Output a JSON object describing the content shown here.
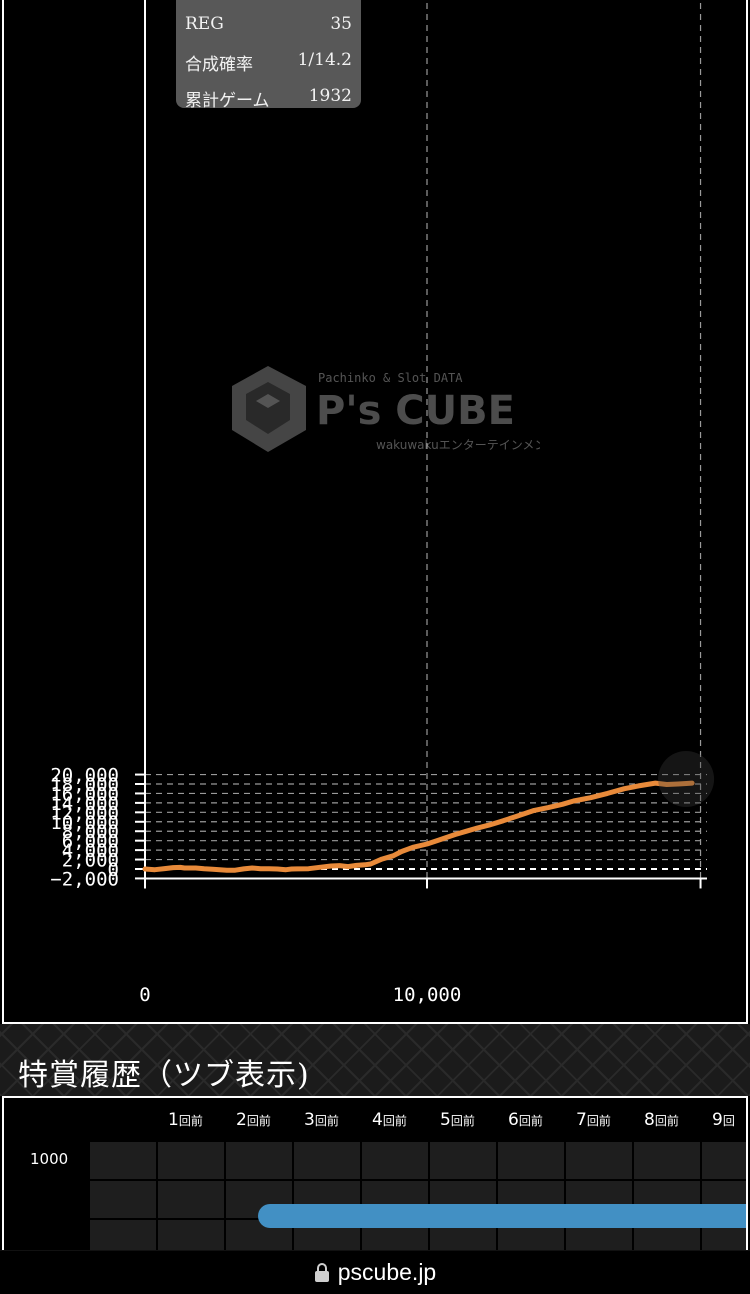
{
  "chart_data": {
    "type": "line",
    "title": "",
    "xlabel": "",
    "ylabel": "",
    "xlim": [
      0,
      19700
    ],
    "ylim": [
      -2000,
      20000
    ],
    "y_ticks": [
      -2000,
      0,
      2000,
      4000,
      6000,
      8000,
      10000,
      12000,
      14000,
      16000,
      18000,
      20000
    ],
    "y_tick_labels": [
      "−2,000",
      "0",
      "2,000",
      "4,000",
      "6,000",
      "8,000",
      "10,000",
      "12,000",
      "14,000",
      "16,000",
      "18,000",
      "20,000"
    ],
    "x_ticks": [
      0,
      10000
    ],
    "x_tick_labels": [
      "0",
      "10,000"
    ],
    "grid": true,
    "series": [
      {
        "color": "#e88a3a",
        "x": [
          0,
          350,
          700,
          1000,
          1250,
          1400,
          1800,
          2100,
          2400,
          2900,
          3200,
          3500,
          3800,
          4100,
          4400,
          4700,
          5000,
          5200,
          5400,
          5800,
          6200,
          6600,
          6900,
          7200,
          7500,
          7800,
          8000,
          8400,
          8800,
          9100,
          9500,
          10000,
          10400,
          11000,
          11400,
          11800,
          12200,
          12700,
          13200,
          13800,
          14300,
          14800,
          15200,
          15800,
          16400,
          17000,
          17500,
          18100,
          18500,
          18900,
          19200,
          19400
        ],
        "values": [
          0,
          -150,
          80,
          300,
          340,
          220,
          210,
          40,
          -60,
          -280,
          -260,
          20,
          220,
          70,
          50,
          10,
          -140,
          10,
          30,
          60,
          360,
          640,
          730,
          500,
          760,
          900,
          1050,
          2100,
          2800,
          3700,
          4600,
          5300,
          6100,
          7300,
          8000,
          8700,
          9300,
          10200,
          11200,
          12400,
          13000,
          13700,
          14400,
          15100,
          16000,
          17000,
          17600,
          18200,
          17900,
          18000,
          18100,
          18200
        ]
      }
    ]
  },
  "tooltip": {
    "rows": [
      {
        "label": "REG",
        "value": "35"
      },
      {
        "label": "合成確率",
        "value": "1/14.2"
      },
      {
        "label": "累計ゲーム",
        "value": "1932"
      }
    ]
  },
  "watermark": {
    "tagline": "Pachinko & Slot DATA",
    "brand": "P's CUBE",
    "sub": "wakuwakuエンターテインメント"
  },
  "history": {
    "title": "特賞履歴（ツブ表示)",
    "y_label": "1000",
    "columns": [
      {
        "num": "1",
        "unit": "回前"
      },
      {
        "num": "2",
        "unit": "回前"
      },
      {
        "num": "3",
        "unit": "回前"
      },
      {
        "num": "4",
        "unit": "回前"
      },
      {
        "num": "5",
        "unit": "回前"
      },
      {
        "num": "6",
        "unit": "回前"
      },
      {
        "num": "7",
        "unit": "回前"
      },
      {
        "num": "8",
        "unit": "回前"
      },
      {
        "num": "9",
        "unit": "回"
      }
    ]
  },
  "browser": {
    "url": "pscube.jp",
    "lock_icon": "lock-icon"
  }
}
